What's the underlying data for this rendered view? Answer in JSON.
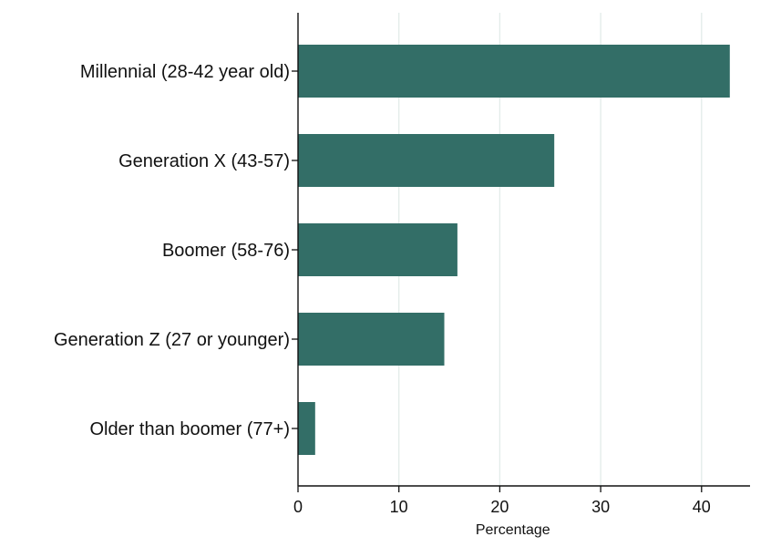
{
  "chart_data": {
    "type": "bar",
    "orientation": "horizontal",
    "categories": [
      "Millennial (28-42 year old)",
      "Generation X (43-57)",
      "Boomer (58-76)",
      "Generation Z (27 or younger)",
      "Older than boomer (77+)"
    ],
    "values": [
      42.8,
      25.4,
      15.8,
      14.5,
      1.7
    ],
    "xlabel": "Percentage",
    "ylabel": "",
    "title": "",
    "xlim": [
      0,
      45
    ],
    "xticks": [
      0,
      10,
      20,
      30,
      40
    ],
    "xtick_labels": [
      "0",
      "10",
      "20",
      "30",
      "40"
    ],
    "grid": "vertical",
    "legend": "none",
    "colors": {
      "bar": "#336e67",
      "grid": "#e2ece9",
      "axis": "#111111",
      "text": "#111111"
    }
  }
}
